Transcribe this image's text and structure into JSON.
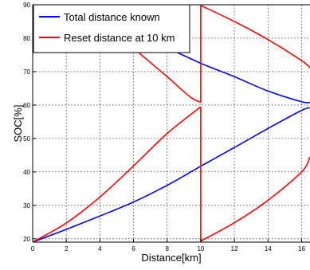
{
  "chart_data": {
    "type": "line",
    "title": "",
    "xlabel": "Distance[km]",
    "ylabel": "SOC[%]",
    "xlim": [
      0,
      16.5
    ],
    "ylim": [
      19,
      90
    ],
    "x_ticks": [
      0,
      2,
      4,
      6,
      8,
      10,
      12,
      14,
      16
    ],
    "y_ticks": [
      20,
      30,
      40,
      50,
      60,
      70,
      80,
      90
    ],
    "grid": true,
    "legend_position": "top-left",
    "series": [
      {
        "name": "Total distance known",
        "color": "#0000ff",
        "segments": [
          {
            "x": [
              0,
              2,
              4,
              6,
              8,
              10,
              12,
              14,
              16,
              16.5
            ],
            "y": [
              19,
              22.8,
              26.8,
              31,
              36,
              41.7,
              47.3,
              53,
              58.4,
              59.2
            ]
          },
          {
            "x": [
              0,
              2,
              4,
              6,
              8,
              10,
              12,
              14,
              16,
              16.5
            ],
            "y": [
              98,
              92.8,
              87.5,
              82.1,
              77.2,
              72.5,
              68.5,
              64.2,
              61,
              60.8
            ]
          }
        ]
      },
      {
        "name": "Reset distance at 10 km",
        "color": "#ff0000",
        "segments": [
          {
            "x": [
              0,
              2,
              4,
              6,
              8,
              10
            ],
            "y": [
              19,
              24.7,
              32.5,
              41.8,
              51.5,
              59.5
            ]
          },
          {
            "x": [
              0,
              2,
              4,
              6,
              8,
              9,
              9.5,
              10
            ],
            "y": [
              98,
              92.5,
              85.5,
              77,
              68.5,
              64,
              62,
              60.8
            ]
          },
          {
            "x": [
              10,
              10
            ],
            "y": [
              59.5,
              19.3
            ]
          },
          {
            "x": [
              10,
              10
            ],
            "y": [
              60.8,
              89.8
            ]
          },
          {
            "x": [
              10,
              12,
              14,
              16,
              16.5
            ],
            "y": [
              19.3,
              24.8,
              31.5,
              40,
              44.5
            ]
          },
          {
            "x": [
              10,
              12,
              14,
              16,
              16.5
            ],
            "y": [
              89.8,
              85,
              79.6,
              73.3,
              71.2
            ]
          }
        ]
      }
    ]
  }
}
